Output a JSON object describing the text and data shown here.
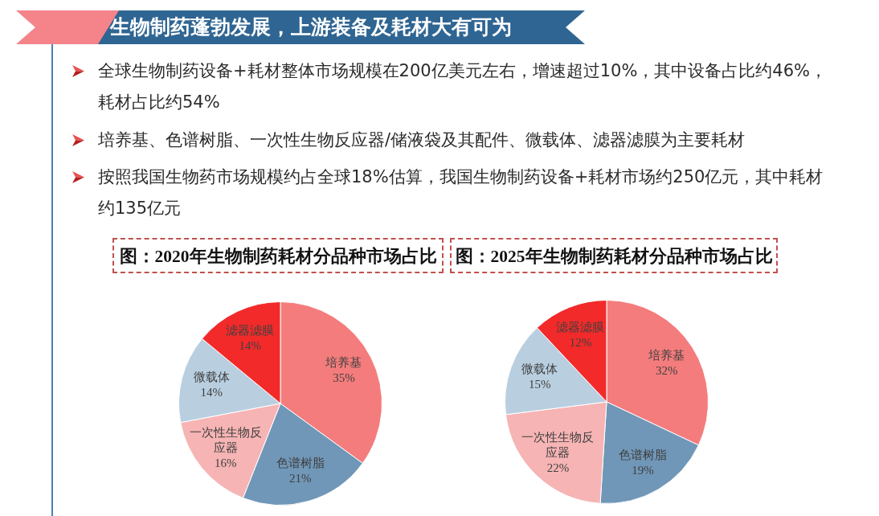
{
  "chart_data": [
    {
      "type": "other",
      "title": "生物制药蓬勃发展，上游装备及耗材大有可为",
      "annotations": [
        "全球生物制药设备+耗材整体市场规模在200亿美元左右，增速超过10%，其中设备占比约46%，耗材占比约54%",
        "培养基、色谱树脂、一次性生物反应器/储液袋及其配件、微载体、滤器滤膜为主要耗材",
        "按照我国生物药市场规模约占全球18%估算，我国生物制药设备+耗材市场约250亿元，其中耗材约135亿元"
      ]
    },
    {
      "type": "pie",
      "title": "图：2020年生物制药耗材分品种市场占比",
      "categories": [
        "培养基",
        "色谱树脂",
        "一次性生物反应器",
        "微载体",
        "滤器滤膜"
      ],
      "values": [
        35,
        21,
        16,
        14,
        14
      ],
      "value_labels": [
        "35%",
        "21%",
        "16%",
        "14%",
        "14%"
      ],
      "colors": [
        "#f47c7c",
        "#7097b8",
        "#f6b4b4",
        "#b9cfe0",
        "#f22a2a"
      ]
    },
    {
      "type": "pie",
      "title": "图：2025年生物制药耗材分品种市场占比",
      "categories": [
        "培养基",
        "色谱树脂",
        "一次性生物反应器",
        "微载体",
        "滤器滤膜"
      ],
      "values": [
        32,
        19,
        22,
        15,
        12
      ],
      "value_labels": [
        "32%",
        "19%",
        "22%",
        "15%",
        "12%"
      ],
      "colors": [
        "#f47c7c",
        "#7097b8",
        "#f6b4b4",
        "#b9cfe0",
        "#f22a2a"
      ]
    }
  ]
}
